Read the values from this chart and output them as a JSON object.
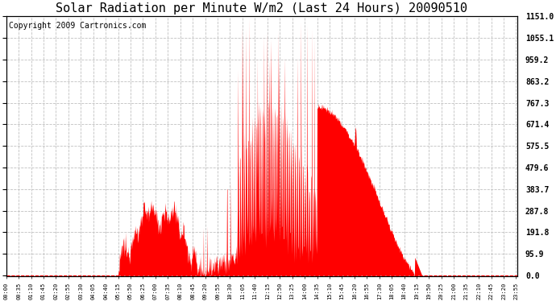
{
  "title": "Solar Radiation per Minute W/m2 (Last 24 Hours) 20090510",
  "copyright_text": "Copyright 2009 Cartronics.com",
  "yticks": [
    0.0,
    95.9,
    191.8,
    287.8,
    383.7,
    479.6,
    575.5,
    671.4,
    767.3,
    863.2,
    959.2,
    1055.1,
    1151.0
  ],
  "ymax": 1151.0,
  "ymin": 0.0,
  "fill_color": "#ff0000",
  "line_color": "#ff0000",
  "grid_color": "#c0c0c0",
  "bg_color": "#ffffff",
  "title_fontsize": 11,
  "copyright_fontsize": 7,
  "x_tick_interval_minutes": 35,
  "total_minutes": 1440,
  "sunrise_minute": 315,
  "sunset_minute": 1155
}
